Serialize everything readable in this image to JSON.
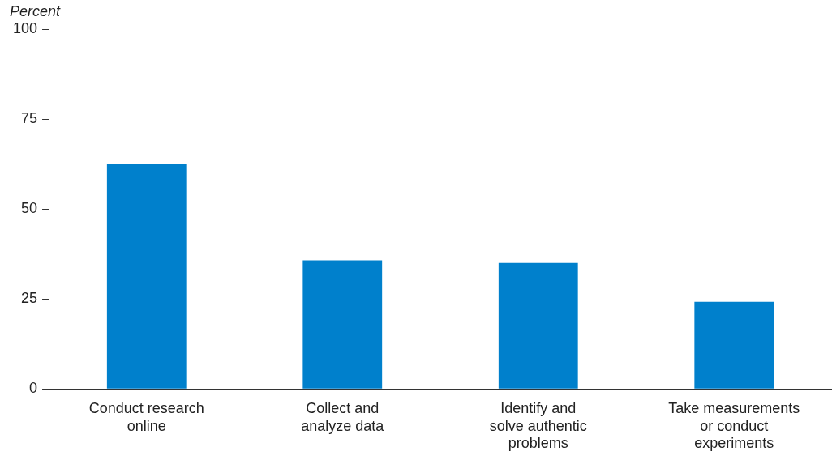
{
  "chart_data": {
    "type": "bar",
    "ylabel": "Percent",
    "categories": [
      "Conduct research online",
      "Collect and analyze data",
      "Identify and solve authentic problems",
      "Take measurements or conduct experiments"
    ],
    "values": [
      62.6,
      35.7,
      35.0,
      24.2
    ],
    "color": "#0080cc",
    "ylim": [
      0,
      100
    ],
    "yticks": [
      0,
      25,
      50,
      75,
      100
    ],
    "grid": false,
    "legend": false
  }
}
